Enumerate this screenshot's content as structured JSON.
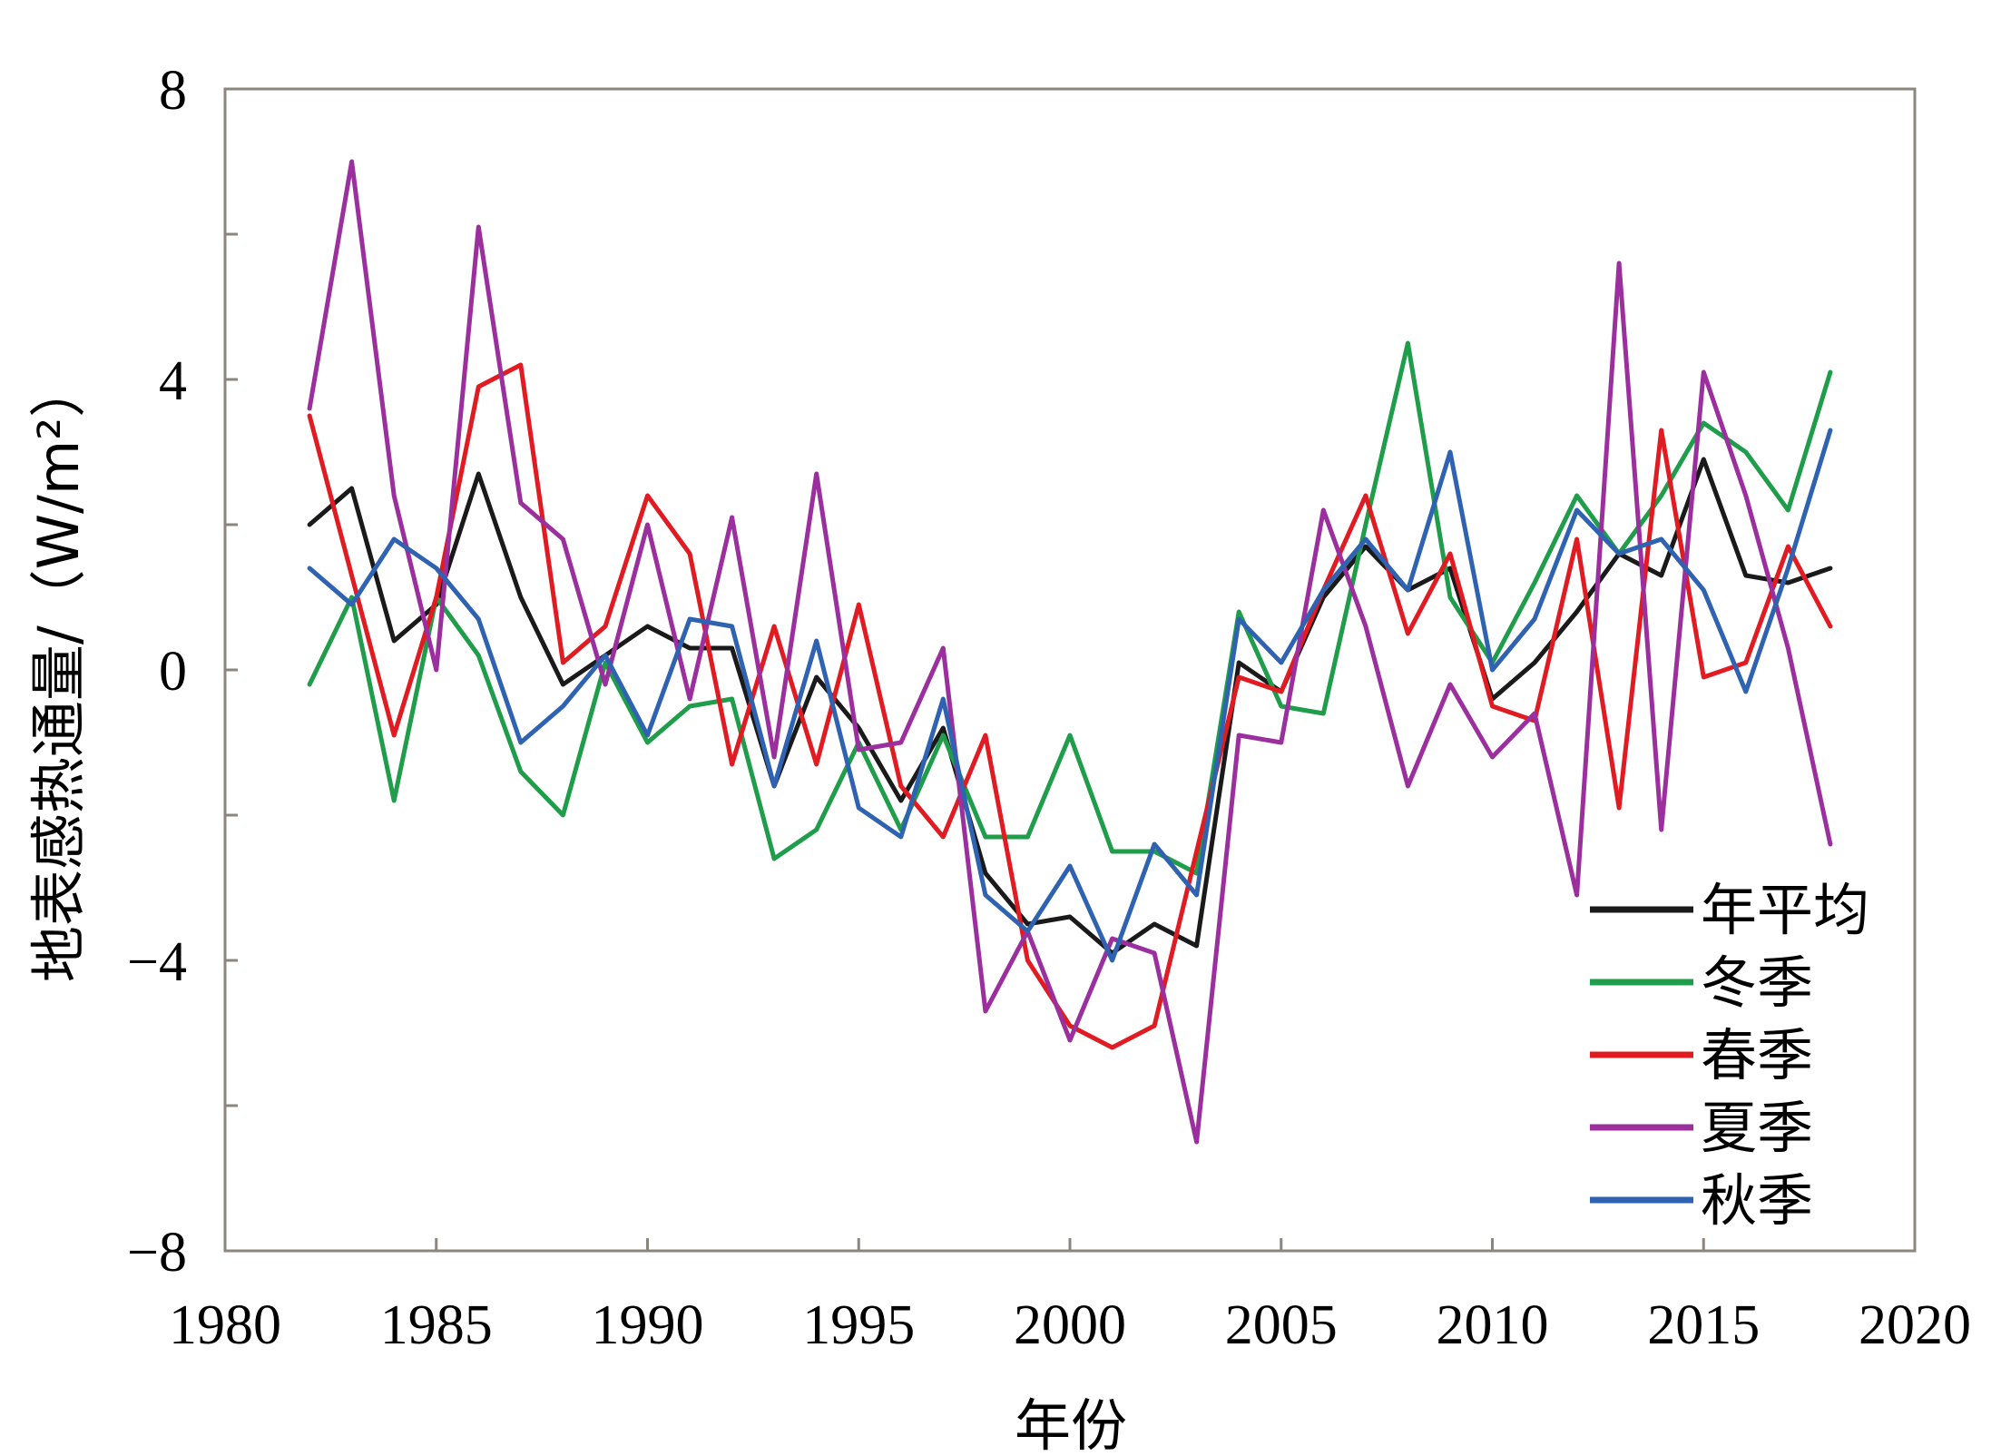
{
  "chart_data": {
    "type": "line",
    "xlabel": "年份",
    "ylabel": "地表感热通量/（W/m²）",
    "xlim": [
      1980,
      2020
    ],
    "ylim": [
      -8,
      8
    ],
    "x_ticks": [
      1980,
      1985,
      1990,
      1995,
      2000,
      2005,
      2010,
      2015,
      2020
    ],
    "y_ticks": [
      8,
      4,
      0,
      -4,
      -8
    ],
    "y_tick_labels": [
      "8",
      "4",
      "0",
      "−4",
      "−8"
    ],
    "legend_position": "bottom-right",
    "x": [
      1982,
      1983,
      1984,
      1985,
      1986,
      1987,
      1988,
      1989,
      1990,
      1991,
      1992,
      1993,
      1994,
      1995,
      1996,
      1997,
      1998,
      1999,
      2000,
      2001,
      2002,
      2003,
      2004,
      2005,
      2006,
      2007,
      2008,
      2009,
      2010,
      2011,
      2012,
      2013,
      2014,
      2015,
      2016,
      2017,
      2018
    ],
    "series": [
      {
        "name": "年平均",
        "color": "#1a1a1a",
        "values": [
          2.0,
          2.5,
          0.4,
          0.9,
          2.7,
          1.0,
          -0.2,
          0.2,
          0.6,
          0.3,
          0.3,
          -1.6,
          -0.1,
          -0.8,
          -1.8,
          -0.8,
          -2.8,
          -3.5,
          -3.4,
          -3.9,
          -3.5,
          -3.8,
          0.1,
          -0.3,
          1.0,
          1.7,
          1.1,
          1.4,
          -0.4,
          0.1,
          0.8,
          1.6,
          1.3,
          2.9,
          1.3,
          1.2,
          1.4
        ]
      },
      {
        "name": "冬季",
        "color": "#1f9d4a",
        "values": [
          -0.2,
          1.0,
          -1.8,
          1.0,
          0.2,
          -1.4,
          -2.0,
          0.1,
          -1.0,
          -0.5,
          -0.4,
          -2.6,
          -2.2,
          -1.0,
          -2.2,
          -0.9,
          -2.3,
          -2.3,
          -0.9,
          -2.5,
          -2.5,
          -2.8,
          0.8,
          -0.5,
          -0.6,
          2.0,
          4.5,
          1.0,
          0.1,
          1.2,
          2.4,
          1.6,
          2.4,
          3.4,
          3.0,
          2.2,
          4.1
        ]
      },
      {
        "name": "春季",
        "color": "#e11b22",
        "values": [
          3.5,
          1.3,
          -0.9,
          1.0,
          3.9,
          4.2,
          0.1,
          0.6,
          2.4,
          1.6,
          -1.3,
          0.6,
          -1.3,
          0.9,
          -1.6,
          -2.3,
          -0.9,
          -4.0,
          -4.9,
          -5.2,
          -4.9,
          -2.5,
          -0.1,
          -0.3,
          1.1,
          2.4,
          0.5,
          1.6,
          -0.5,
          -0.7,
          1.8,
          -1.9,
          3.3,
          -0.1,
          0.1,
          1.7,
          0.6
        ]
      },
      {
        "name": "夏季",
        "color": "#9b2f9e",
        "values": [
          3.6,
          7.0,
          2.4,
          0.0,
          6.1,
          2.3,
          1.8,
          -0.2,
          2.0,
          -0.4,
          2.1,
          -1.2,
          2.7,
          -1.1,
          -1.0,
          0.3,
          -4.7,
          -3.6,
          -5.1,
          -3.7,
          -3.9,
          -6.5,
          -0.9,
          -1.0,
          2.2,
          0.6,
          -1.6,
          -0.2,
          -1.2,
          -0.6,
          -3.1,
          5.6,
          -2.2,
          4.1,
          2.4,
          0.3,
          -2.4
        ]
      },
      {
        "name": "秋季",
        "color": "#2f62b0",
        "values": [
          1.4,
          0.9,
          1.8,
          1.4,
          0.7,
          -1.0,
          -0.5,
          0.2,
          -0.9,
          0.7,
          0.6,
          -1.6,
          0.4,
          -1.9,
          -2.3,
          -0.4,
          -3.1,
          -3.6,
          -2.7,
          -4.0,
          -2.4,
          -3.1,
          0.7,
          0.1,
          1.1,
          1.8,
          1.1,
          3.0,
          0.0,
          0.7,
          2.2,
          1.6,
          1.8,
          1.1,
          -0.3,
          1.4,
          3.3
        ]
      }
    ]
  }
}
